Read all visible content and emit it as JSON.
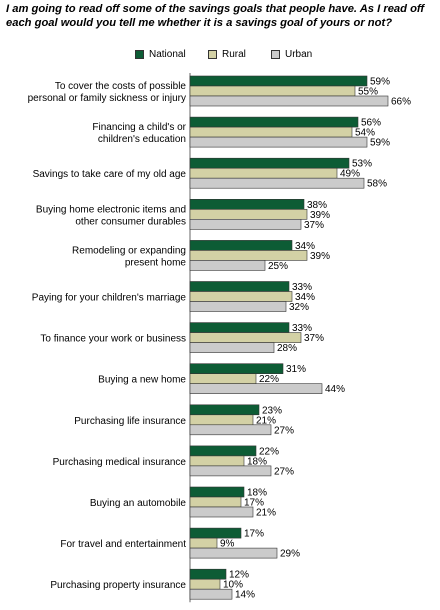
{
  "title_lines": [
    "I am going to read off some of the savings goals that people have. As I read off",
    "each goal would you tell me whether it is a savings goal of yours or not?"
  ],
  "colors": {
    "National": "#0d5c35",
    "Rural": "#d3d1a5",
    "Urban": "#cbcbcb",
    "bar_border": "#333333",
    "axis": "#666666"
  },
  "chart_data": {
    "type": "bar",
    "orientation": "horizontal",
    "title": "I am going to read off some of the savings goals that people have. As I read off each goal would you tell me whether it is a savings goal of yours or not?",
    "legend": [
      "National",
      "Rural",
      "Urban"
    ],
    "legend_placement": "top-center",
    "value_suffix": "%",
    "xlim": [
      0,
      70
    ],
    "grid": false,
    "categories": [
      [
        "To cover the costs of possible",
        "personal or family sickness or injury"
      ],
      [
        "Financing a child's or",
        "children's education"
      ],
      [
        "Savings to take care of my old age"
      ],
      [
        "Buying home electronic items and",
        "other consumer durables"
      ],
      [
        "Remodeling or expanding",
        "present home"
      ],
      [
        "Paying for your children's marriage"
      ],
      [
        "To finance your work or business"
      ],
      [
        "Buying a new home"
      ],
      [
        "Purchasing life insurance"
      ],
      [
        "Purchasing medical insurance"
      ],
      [
        "Buying an automobile"
      ],
      [
        "For travel and entertainment"
      ],
      [
        "Purchasing property insurance"
      ]
    ],
    "series": [
      {
        "name": "National",
        "values": [
          59,
          56,
          53,
          38,
          34,
          33,
          33,
          31,
          23,
          22,
          18,
          17,
          12
        ]
      },
      {
        "name": "Rural",
        "values": [
          55,
          54,
          49,
          39,
          39,
          34,
          37,
          22,
          21,
          18,
          17,
          9,
          10
        ]
      },
      {
        "name": "Urban",
        "values": [
          66,
          59,
          58,
          37,
          25,
          32,
          28,
          44,
          27,
          27,
          21,
          29,
          14
        ]
      }
    ]
  }
}
